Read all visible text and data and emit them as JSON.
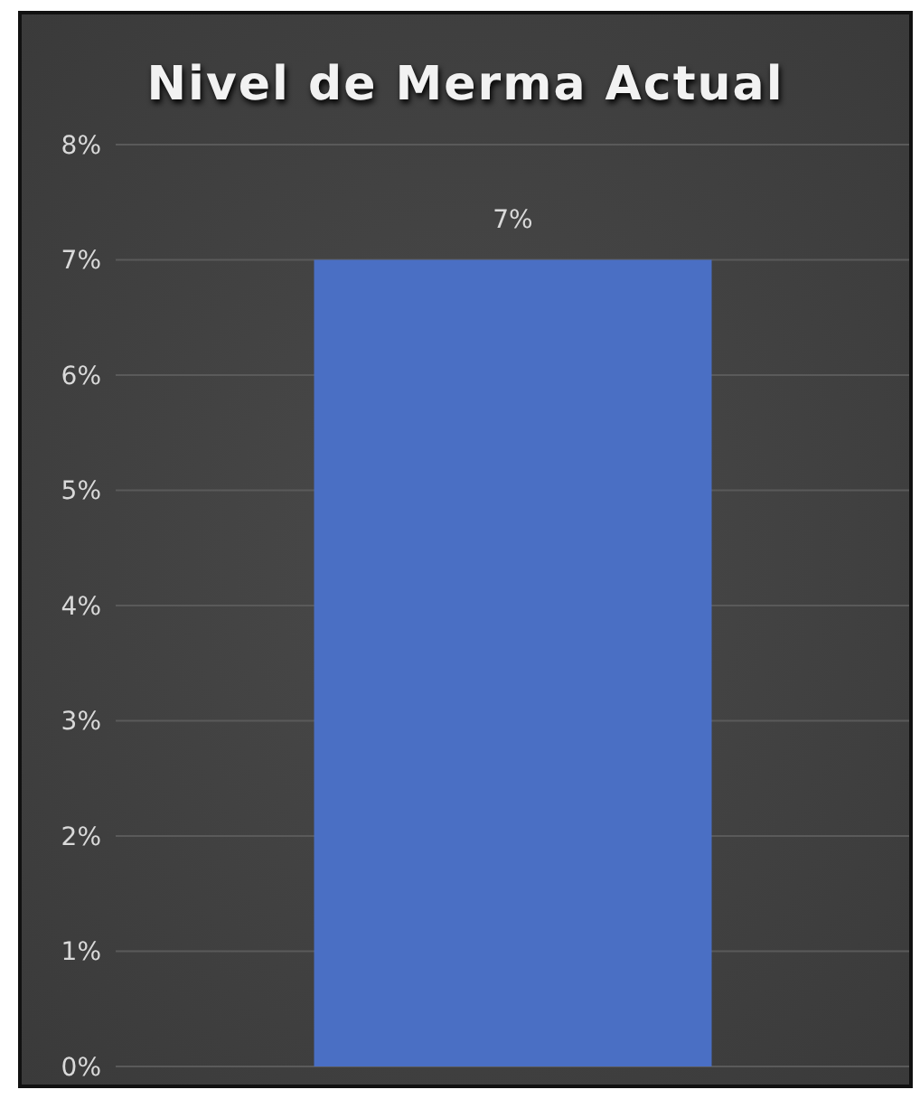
{
  "chart_data": {
    "type": "bar",
    "title": "Nivel de Merma Actual",
    "categories": [
      null
    ],
    "values": [
      7
    ],
    "color": "#4a6fc4",
    "value_labels": [
      "7%"
    ],
    "ylim": [
      0,
      8
    ],
    "yticks": [
      {
        "value": 0,
        "label": "0%"
      },
      {
        "value": 1,
        "label": "1%"
      },
      {
        "value": 2,
        "label": "2%"
      },
      {
        "value": 3,
        "label": "3%"
      },
      {
        "value": 4,
        "label": "4%"
      },
      {
        "value": 5,
        "label": "5%"
      },
      {
        "value": 6,
        "label": "6%"
      },
      {
        "value": 7,
        "label": "7%"
      },
      {
        "value": 8,
        "label": "8%"
      }
    ],
    "grid": "y",
    "tick_labels": "y"
  }
}
